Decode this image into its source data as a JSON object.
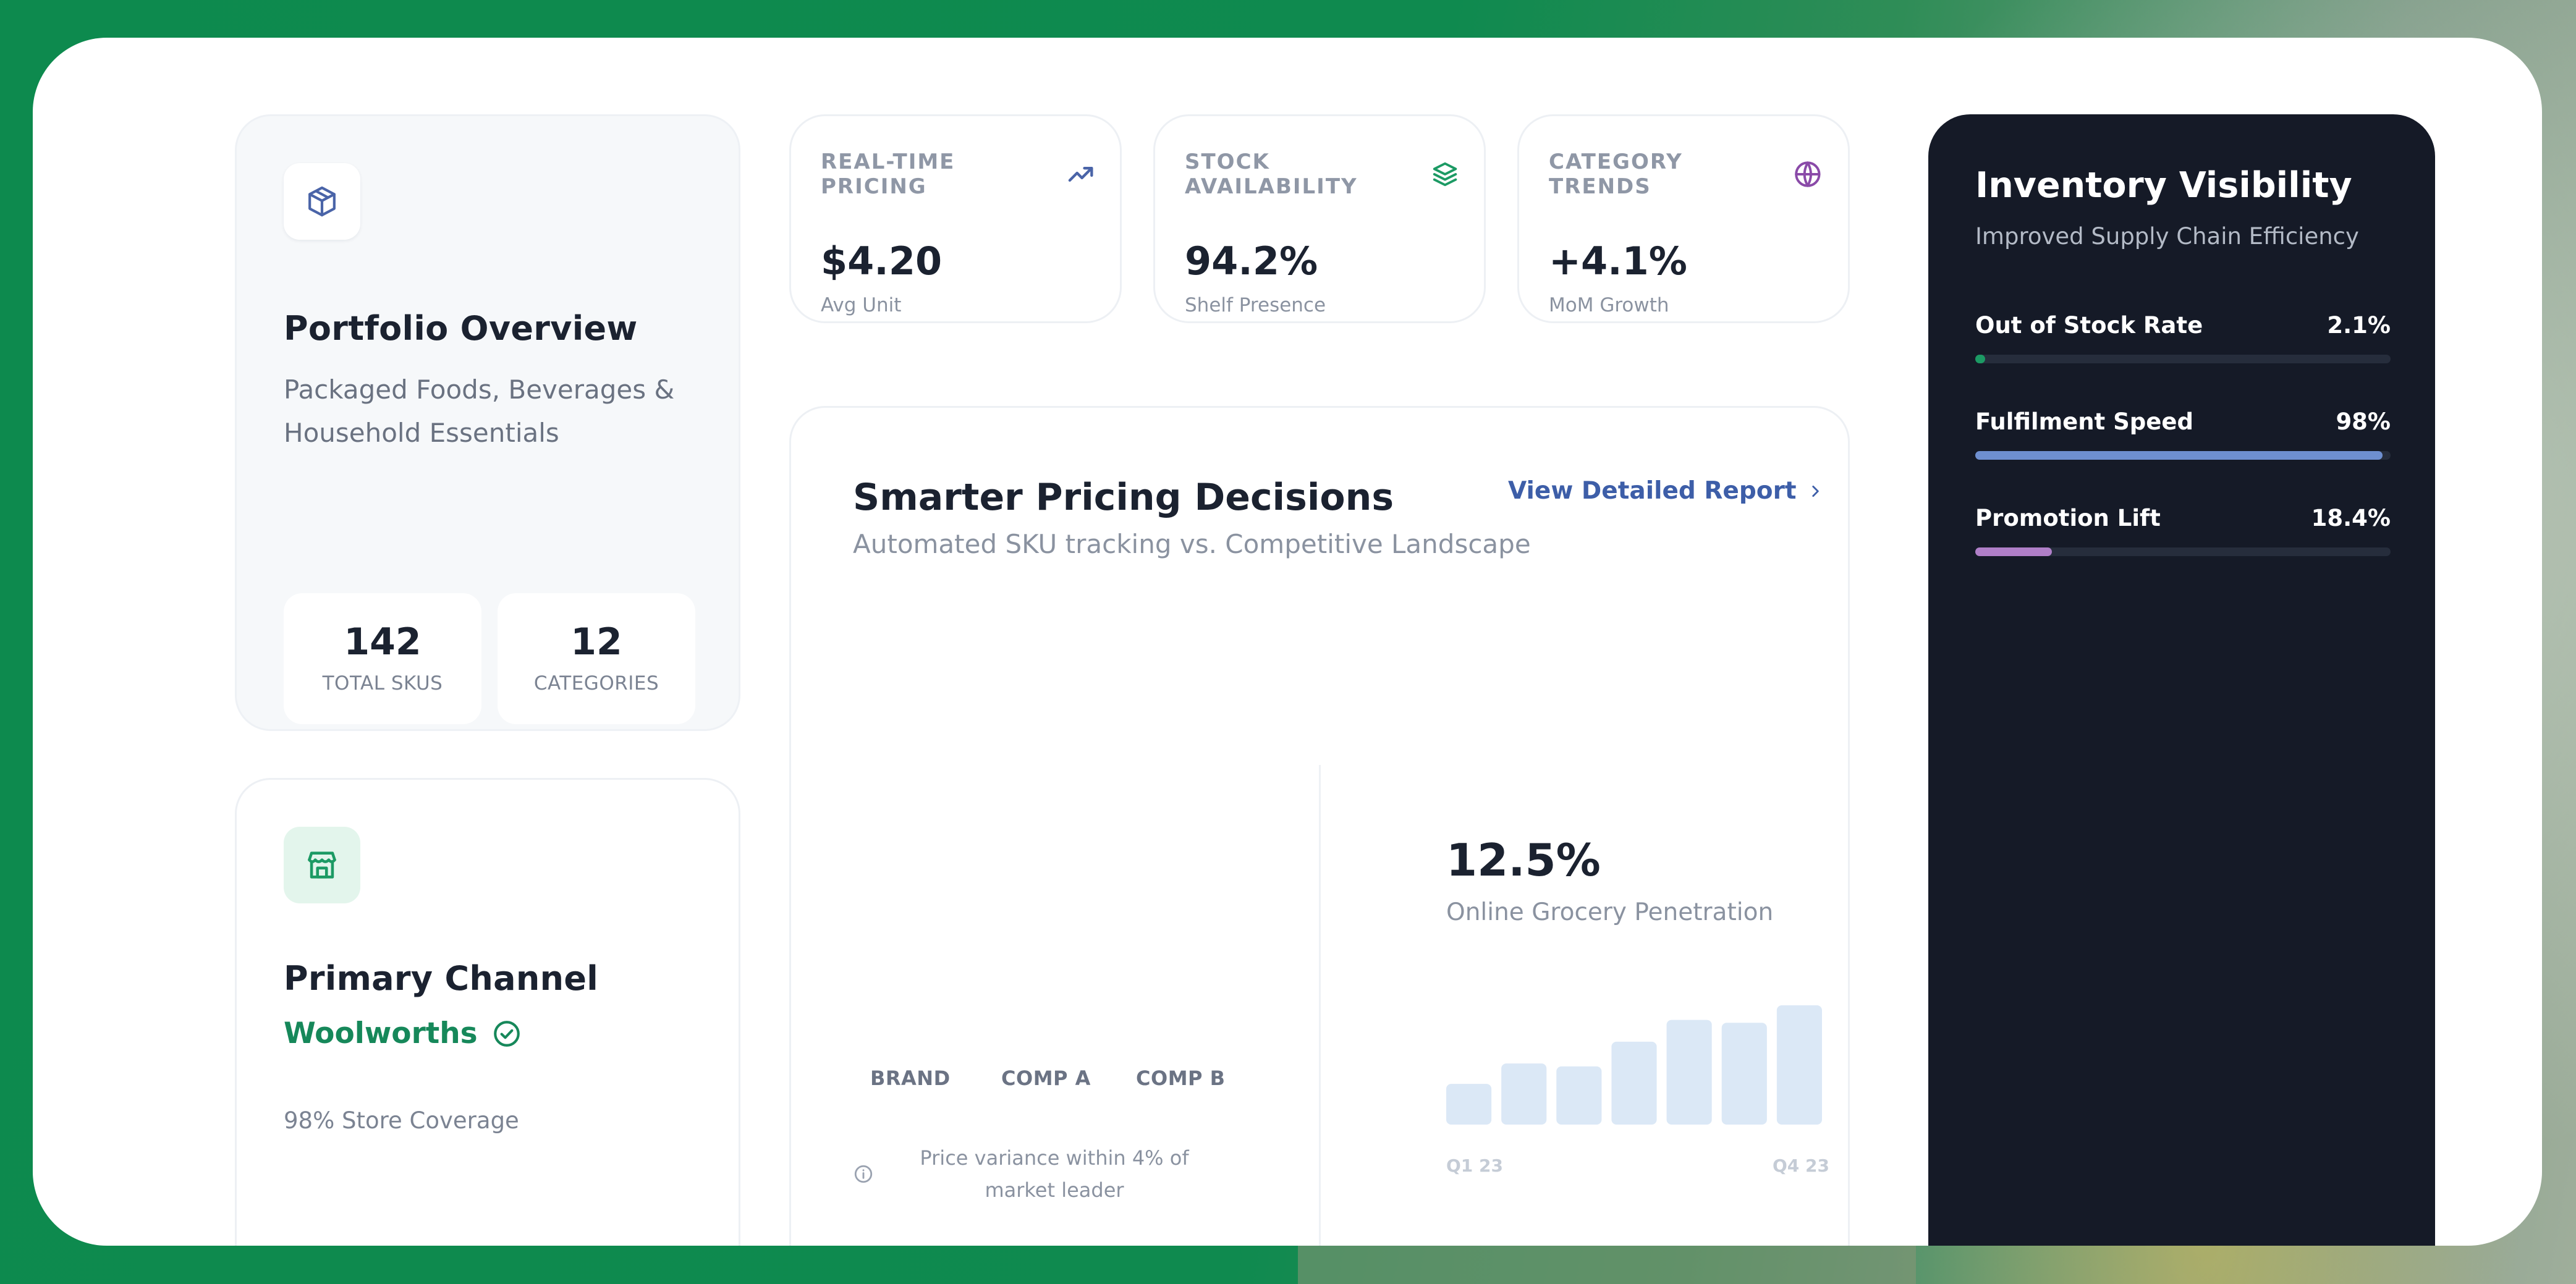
{
  "portfolio": {
    "title": "Portfolio Overview",
    "description": "Packaged Foods, Beverages & Household Essentials",
    "stats": [
      {
        "value": "142",
        "label": "TOTAL SKUS"
      },
      {
        "value": "12",
        "label": "CATEGORIES"
      }
    ],
    "icon": "package-icon"
  },
  "channel": {
    "title": "Primary Channel",
    "retailer": "Woolworths",
    "coverage": "98% Store Coverage",
    "icon": "store-icon"
  },
  "kpis": [
    {
      "label": "REAL-TIME PRICING",
      "value": "$4.20",
      "sub": "Avg Unit",
      "icon": "trend-up-icon",
      "icon_color": "#4a64a8"
    },
    {
      "label": "STOCK AVAILABILITY",
      "value": "94.2%",
      "sub": "Shelf Presence",
      "icon": "layers-icon",
      "icon_color": "#1c9a64"
    },
    {
      "label": "CATEGORY TRENDS",
      "value": "+4.1%",
      "sub": "MoM Growth",
      "icon": "globe-icon",
      "icon_color": "#8a4aa8"
    }
  ],
  "pricing": {
    "title": "Smarter Pricing Decisions",
    "subtitle": "Automated SKU tracking vs. Competitive Landscape",
    "link": "View Detailed Report",
    "columns": [
      "BRAND",
      "COMP A",
      "COMP B"
    ],
    "note": "Price variance within 4% of market leader"
  },
  "penetration": {
    "value": "12.5%",
    "label": "Online Grocery Penetration"
  },
  "chart_data": {
    "type": "bar",
    "categories": [
      "Q1 23",
      "",
      "",
      "",
      "",
      "",
      "Q4 23"
    ],
    "values": [
      28,
      42,
      40,
      57,
      72,
      70,
      82
    ],
    "ylim": [
      0,
      85
    ],
    "grid": false,
    "bar_color": "#dbe8f6"
  },
  "inventory": {
    "title": "Inventory Visibility",
    "subtitle": "Improved Supply Chain Efficiency",
    "metrics": [
      {
        "label": "Out of Stock Rate",
        "value": "2.1%",
        "fraction": 0.021,
        "color": "#1c9a64"
      },
      {
        "label": "Fulfilment Speed",
        "value": "98%",
        "fraction": 0.98,
        "color": "#6e8fd0"
      },
      {
        "label": "Promotion Lift",
        "value": "18.4%",
        "fraction": 0.184,
        "color": "#b07fc8"
      }
    ]
  }
}
